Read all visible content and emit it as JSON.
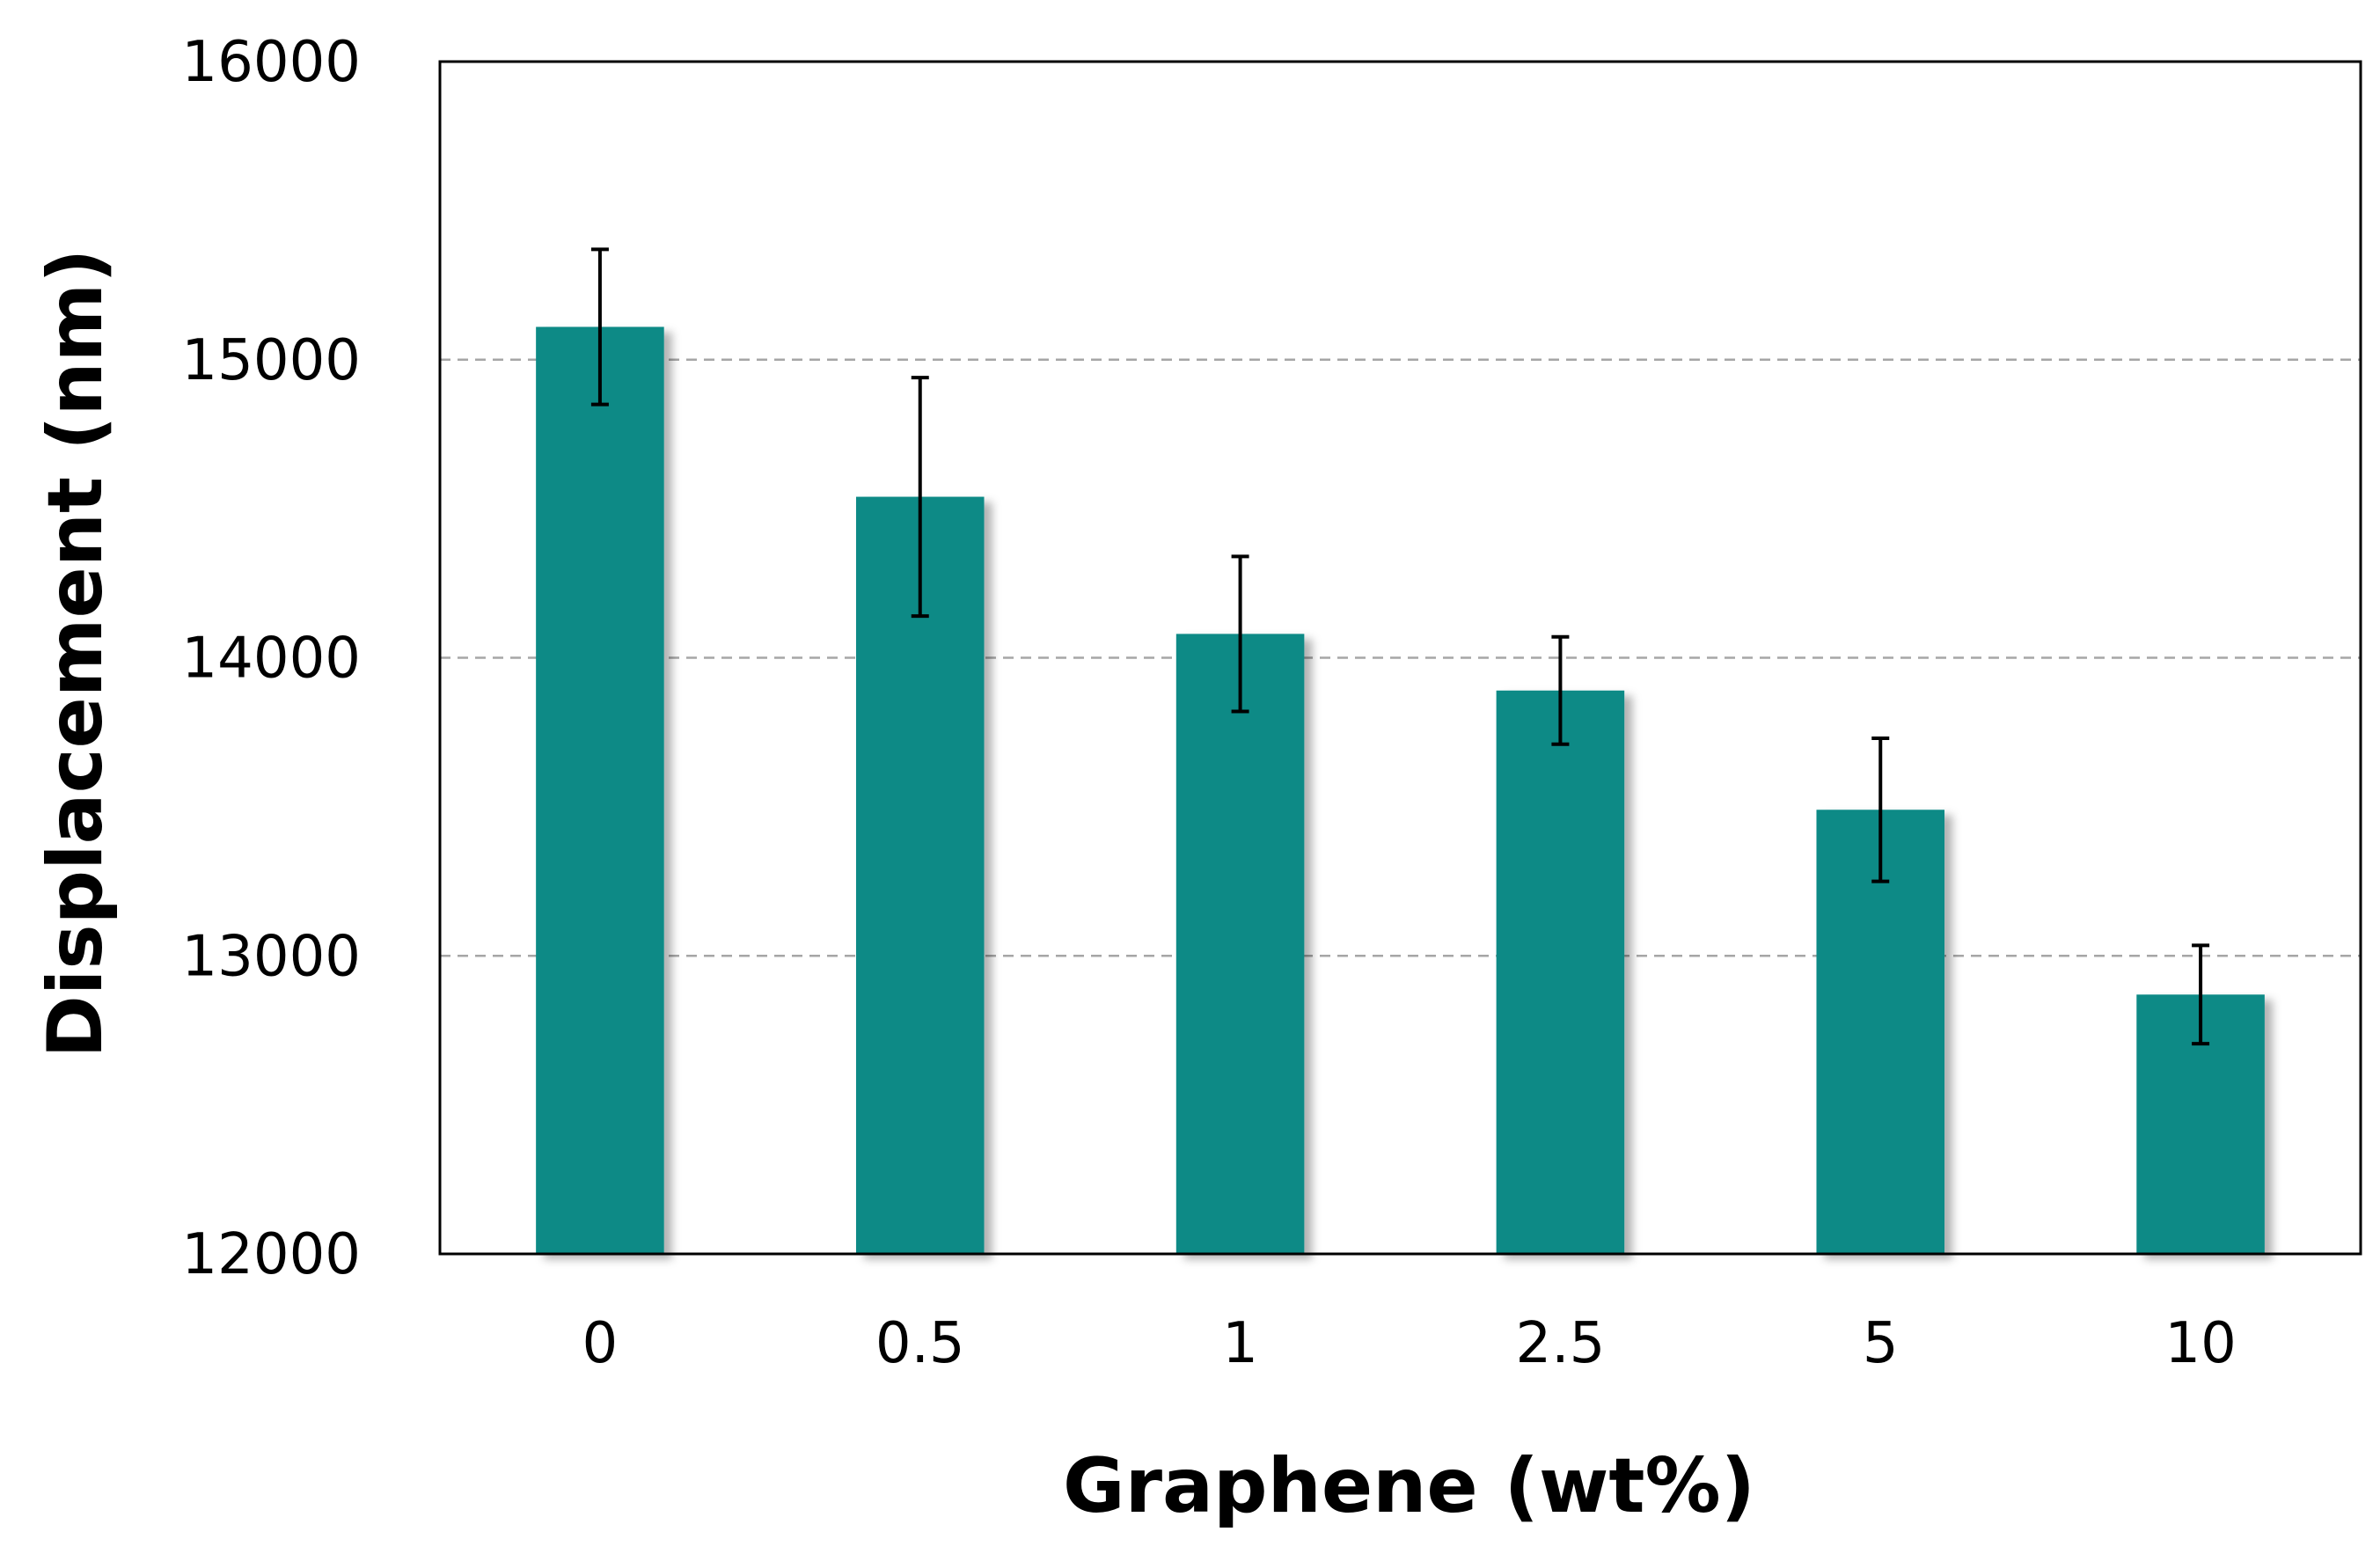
{
  "chart_data": {
    "type": "bar",
    "title": "",
    "xlabel": "Graphene (wt%)",
    "ylabel": "Displacement (nm)",
    "categories": [
      "0",
      "0.5",
      "1",
      "2.5",
      "5",
      "10"
    ],
    "series": [
      {
        "values": [
          15110,
          14540,
          14080,
          13890,
          13490,
          12870
        ],
        "error": [
          260,
          400,
          260,
          180,
          240,
          165
        ]
      }
    ],
    "ylim": [
      12000,
      16000
    ],
    "yticks": [
      12000,
      13000,
      14000,
      15000,
      16000
    ],
    "ytick_labels": [
      "12000",
      "13000",
      "14000",
      "15000",
      "16000"
    ],
    "grid": "horizontal dashed",
    "legend": "none",
    "bar_color": "#078a86",
    "error_bar_color": "#000000",
    "grid_color": "#a6a6a6"
  }
}
